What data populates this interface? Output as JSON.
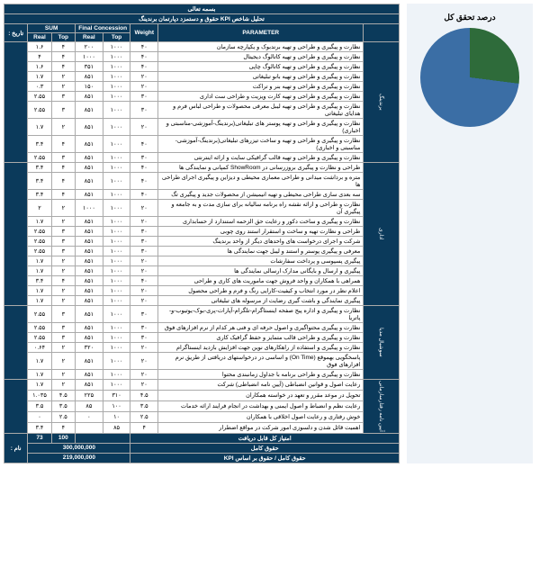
{
  "header": {
    "bismillah": "بسمه تعالی",
    "title": "تحلیل شاخص KPI حقوق و دستمزد دپارتمان برندینگ",
    "name_label": "نام :",
    "date_label": "تاریخ :",
    "col_parameter": "PARAMETER",
    "col_weight": "Weight",
    "col_final": "Final Concession",
    "col_sum": "SUM",
    "sub_real": "Real",
    "sub_top": "Top"
  },
  "groups": [
    {
      "label": "برندینگ",
      "rows": [
        {
          "p": "نظارت و پیگیری و طراحی و تهیه برندبوک و یکپارچه سازمان",
          "w": "۴۰",
          "ft": "۱۰۰۰",
          "fr": "۲۰۰",
          "st": "۴",
          "sr": "۱.۶"
        },
        {
          "p": "نظارت و پیگیری و طراحی و تهیه کاتالوگ دیجیتال",
          "w": "۴۰",
          "ft": "۱۰۰۰",
          "fr": "۱۰۰۰",
          "st": "۴",
          "sr": "۴"
        },
        {
          "p": "نظارت و پیگیری و طراحی و تهیه کاتالوگ چاپی",
          "w": "۴۰",
          "ft": "۱۰۰۰",
          "fr": "۳۵۱",
          "st": "۴",
          "sr": "۱.۶"
        },
        {
          "p": "نظارت و پیگیری و طراحی و تهیه بانو تبلیغاتی",
          "w": "۲۰",
          "ft": "۱۰۰۰",
          "fr": "۸۵۱",
          "st": "۲",
          "sr": "۱.۷"
        },
        {
          "p": "نظارت و پیگیری و طراحی و تهیه بنر و تراکت",
          "w": "۲۰",
          "ft": "۱۰۰۰",
          "fr": "۱۵۰",
          "st": "۲",
          "sr": "۰.۳"
        },
        {
          "p": "نظارت و پیگیری و طراحی و تهیه کارت ویزیت و طراحی ست اداری",
          "w": "۳۰",
          "ft": "۱۰۰۰",
          "fr": "۸۵۱",
          "st": "۳",
          "sr": "۲.۵۵"
        },
        {
          "p": "نظارت و پیگیری و طراحی و تهیه لیبل معرفی محصولات و طراحی لباس فرم و هدایای تبلیغاتی",
          "w": "۳۰",
          "ft": "۱۰۰۰",
          "fr": "۸۵۱",
          "st": "۳",
          "sr": "۲.۵۵"
        },
        {
          "p": "نظارت و پیگیری و طراحی و تهیه پوستر های تبلیغاتی(برندینگ-آموزشی-مناسبتی و اخباری)",
          "w": "۲۰",
          "ft": "۱۰۰۰",
          "fr": "۸۵۱",
          "st": "۲",
          "sr": "۱.۷"
        },
        {
          "p": "نظارت و پیگیری و طراحی و تهیه و ساخت تیزرهای تبلیغاتی(برندینگ-آموزشی-مناسبتی و اخباری)",
          "w": "۴۰",
          "ft": "۱۰۰۰",
          "fr": "۸۵۱",
          "st": "۴",
          "sr": "۳.۴"
        },
        {
          "p": "نظارت و پیگیری و طراحی و تهیه قالب گرافیکی سایت و ارائه اینترنتی",
          "w": "۳۰",
          "ft": "۱۰۰۰",
          "fr": "۸۵۱",
          "st": "۳",
          "sr": "۲.۵۵"
        }
      ]
    },
    {
      "label": "اداری",
      "rows": [
        {
          "p": "طراحی و نظارت و پیگیری بروزرسانی در ShowRoom کمپانی و نمایندگی ها",
          "w": "۴۰",
          "ft": "۱۰۰۰",
          "fr": "۸۵۱",
          "st": "۴",
          "sr": "۳.۴"
        },
        {
          "p": "متره و برداشت میدانی و طراحی معماری محیطی و دیزاین و پیگیری اجرای طراحی ها",
          "w": "۴۰",
          "ft": "۱۰۰۰",
          "fr": "۸۵۱",
          "st": "۴",
          "sr": "۳.۴"
        },
        {
          "p": "سه بعدی سازی طراحی محیطی و تهیه انیمیشن از محصولات جدید و پیگیری تگ",
          "w": "۴۰",
          "ft": "۱۰۰۰",
          "fr": "۸۵۱",
          "st": "۴",
          "sr": "۳.۴"
        },
        {
          "p": "نظارت و طراحی و ارائه نقشه راه برنامه سالیانه برای سازی مدت و به جامعه و پیگیری آن",
          "w": "۲۰",
          "ft": "۱۰۰۰",
          "fr": "۱۰۰۰",
          "st": "۲",
          "sr": "۲"
        },
        {
          "p": "نظارت و پیگیری و ساخت دکور و رعایت حق الزحمه استندارد از حسابداری",
          "w": "۲۰",
          "ft": "۱۰۰۰",
          "fr": "۸۵۱",
          "st": "۲",
          "sr": "۱.۷"
        },
        {
          "p": "طراحی و نظارت تهیه و ساخت و استقرار استند روی چوبی",
          "w": "۳۰",
          "ft": "۱۰۰۰",
          "fr": "۸۵۱",
          "st": "۳",
          "sr": "۲.۵۵"
        },
        {
          "p": "شرکت و اجرای درخواست های واحدهای دیگر از واحد برندینگ",
          "w": "۳۰",
          "ft": "۱۰۰۰",
          "fr": "۸۵۱",
          "st": "۳",
          "sr": "۲.۵۵"
        },
        {
          "p": "معرفی و پیگیری پوستر و استند و لیبل جهت نمایندگی ها",
          "w": "۳۰",
          "ft": "۱۰۰۰",
          "fr": "۸۵۱",
          "st": "۳",
          "sr": "۲.۵۵"
        },
        {
          "p": "پیگیری پسپوسی و پرداخت سفارشات",
          "w": "۲۰",
          "ft": "۱۰۰۰",
          "fr": "۸۵۱",
          "st": "۲",
          "sr": "۱.۷"
        },
        {
          "p": "پیگیری و ارسال و بایگانی مدارک ارسالی نمایندگی ها",
          "w": "۲۰",
          "ft": "۱۰۰۰",
          "fr": "۸۵۱",
          "st": "۲",
          "sr": "۱.۷"
        },
        {
          "p": "همراهی با همکاران و واحد فروش جهت ماموریت های کاری و طراحی",
          "w": "۴۰",
          "ft": "۱۰۰۰",
          "fr": "۸۵۱",
          "st": "۴",
          "sr": "۳.۴"
        },
        {
          "p": "اعلام نظر در مورد انتخاب و کیفیت-کارایی رنگ و فرم و طراحی محصول",
          "w": "۲۰",
          "ft": "۱۰۰۰",
          "fr": "۸۵۱",
          "st": "۲",
          "sr": "۱.۷"
        },
        {
          "p": "پیگیری نمایندگی و باشت گیری رضایت از مرسوله های تبلیغاتی",
          "w": "۲۰",
          "ft": "۱۰۰۰",
          "fr": "۸۵۱",
          "st": "۲",
          "sr": "۱.۷"
        }
      ]
    },
    {
      "label": "سوشیال مدیا",
      "rows": [
        {
          "p": "نظارت و پیگیری و اداره پیج صفحه اینستاگرام-تلگرام-آپارات-پری-بوک-یوتیوب-و-پاتریا",
          "w": "۳۰",
          "ft": "۱۰۰۰",
          "fr": "۸۵۱",
          "st": "۳",
          "sr": "۲.۵۵"
        },
        {
          "p": "نظارت و پیگیری محتواگیری و اصول حرفه ای و فنی هر کدام از نرم افزارهای فوق",
          "w": "۳۰",
          "ft": "۱۰۰۰",
          "fr": "۸۵۱",
          "st": "۳",
          "sr": "۲.۵۵"
        },
        {
          "p": "نظارت و پیگیری و طراحی قالب متمایز و حفظ گرافیک کاری",
          "w": "۳۰",
          "ft": "۱۰۰۰",
          "fr": "۸۵۱",
          "st": "۳",
          "sr": "۲.۵۵"
        },
        {
          "p": "نظارت و پیگیری و استفاده از راهکارهای نوین جهت افزایش بازدید اینستاگرام",
          "w": "۲۰",
          "ft": "۱۰۰۰",
          "fr": "۳۲۰",
          "st": "۲",
          "sr": "۰.۶۴"
        },
        {
          "p": "پاسخگویی بهموقع (On Time) و اساسی در درخواستهای دریافتی از طریق نرم افزارهای فوق",
          "w": "۲۰",
          "ft": "۱۰۰۰",
          "fr": "۸۵۱",
          "st": "۲",
          "sr": "۱.۷"
        },
        {
          "p": "نظارت و پیگیری و طراحی برنامه با جداول زمانبندی محتوا",
          "w": "۲۰",
          "ft": "۱۰۰۰",
          "fr": "۸۵۱",
          "st": "۲",
          "sr": "۱.۷"
        }
      ]
    },
    {
      "label": "آیین نامه رفتارسازمانی",
      "rows": [
        {
          "p": "رعایت اصول و قوانین انضباطی (آیین نامه انضباطی) شرکت",
          "w": "۲۰",
          "ft": "۱۰۰۰",
          "fr": "۸۵۱",
          "st": "۲",
          "sr": "۱.۷"
        },
        {
          "p": "تحویل در موعد مقرر و تعهد در خواسته همکاران",
          "w": "۴.۵",
          "ft": "۳۱۰",
          "fr": "۲۲۵",
          "st": "۴.۵",
          "sr": "۱.۰۳۵"
        },
        {
          "p": "رعایت نظم و انضباط و اصول ایمنی و بهداشت در انجام فرایند ارائه خدمات",
          "w": "۳.۵",
          "ft": "۱۰۰",
          "fr": "۸۵",
          "st": "۳.۵",
          "sr": "۳.۵"
        },
        {
          "p": "خوش رفتاری و رعایت اصول اخلاقی با همکاران",
          "w": "۲.۵",
          "ft": "۱۰",
          "fr": "۰",
          "st": "۲.۵",
          "sr": "۰"
        },
        {
          "p": "اهمیت قائل شدن و دلسوزی امور شرکت در مواقع اضطرار",
          "w": "۴",
          "ft": "۸۵",
          "fr": "",
          "st": "۴",
          "sr": "۳.۴"
        }
      ]
    }
  ],
  "footer": {
    "score_label": "امتیاز کل قابل دریافت",
    "sum_top": "100",
    "sum_real": "73",
    "salary_full_label": "حقوق کامل",
    "salary_full_val": "300,000,000",
    "salary_kpi_label": "حقوق کامل / حقوق بر اساس KPI",
    "salary_kpi_val": "219,000,000"
  },
  "chart": {
    "title": "درصد تحقق کل",
    "slice1_pct": 73,
    "slice2_pct": 27,
    "color1": "#3b6ea5",
    "color2": "#2e6b3a",
    "bg": "#eef3f8"
  }
}
